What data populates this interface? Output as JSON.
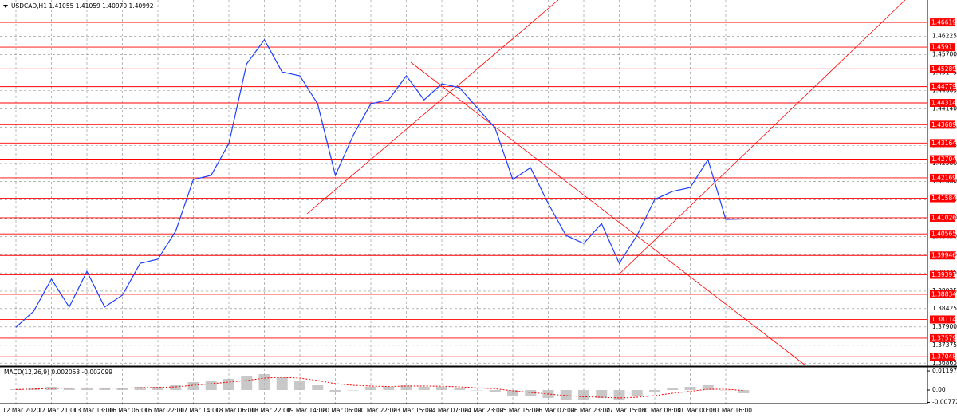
{
  "chart_data": [
    {
      "type": "line",
      "title": "USDCAD,H1  1.41055 1.41059 1.40970 1.40992",
      "categories": [
        "12 Mar 2020",
        null,
        "12 Mar 21:00",
        null,
        "13 Mar 13:00",
        null,
        "16 Mar 06:00",
        null,
        "16 Mar 22:00",
        null,
        "17 Mar 14:00",
        null,
        "18 Mar 06:00",
        null,
        "18 Mar 22:00",
        null,
        "19 Mar 14:00",
        null,
        "20 Mar 06:00",
        null,
        "20 Mar 22:00",
        null,
        "23 Mar 15:00",
        null,
        "24 Mar 07:00",
        null,
        "24 Mar 23:00",
        null,
        "25 Mar 15:00",
        null,
        "26 Mar 07:00",
        null,
        "26 Mar 23:00",
        null,
        "27 Mar 15:00",
        null,
        "30 Mar 08:00",
        null,
        "31 Mar 00:00",
        null,
        "31 Mar 16:00",
        null
      ],
      "values": [
        1.3789,
        1.3835,
        1.3927,
        1.3847,
        1.3949,
        1.3847,
        1.3881,
        1.3972,
        1.3984,
        1.4064,
        1.4212,
        1.4224,
        1.4315,
        1.4543,
        1.4612,
        1.452,
        1.4509,
        1.4429,
        1.4224,
        1.4338,
        1.4429,
        1.444,
        1.4509,
        1.444,
        1.4486,
        1.4475,
        1.4417,
        1.436,
        1.4212,
        1.4246,
        1.4143,
        1.4052,
        1.4029,
        1.4086,
        1.3972,
        1.4052,
        1.4155,
        1.4178,
        1.4189,
        1.4269,
        1.4098,
        1.4099
      ],
      "color": "#1f3fff",
      "ylim": [
        1.368,
        1.4726
      ],
      "yticks": [
        1.46225,
        {
          "value": 1.457,
          "label": "1.45700"
        },
        1.45175,
        1.44665,
        {
          "value": 1.4414,
          "label": "1.44140"
        },
        1.43615,
        1.43095,
        {
          "value": 1.4258,
          "label": "1.42580"
        },
        {
          "value": 1.4206,
          "label": "1.42060"
        },
        1.41535,
        {
          "value": 1.4101,
          "label": "1.41010"
        },
        {
          "value": 1.4049,
          "label": "1.40490"
        },
        1.39965,
        1.39445,
        1.38925,
        1.38425,
        {
          "value": 1.379,
          "label": "1.37900"
        },
        1.37375,
        1.36865
      ],
      "levels": [
        1.46619,
        1.4591,
        1.45289,
        1.44779,
        1.44314,
        1.43689,
        1.43164,
        1.42704,
        1.42169,
        1.41584,
        1.41026,
        1.40565,
        1.39946,
        1.39391,
        1.38834,
        1.38114,
        1.37579,
        1.37048
      ],
      "level_color": "#ff0000",
      "grid": true
    },
    {
      "type": "bar",
      "title": "MACD(12,26,9) 0.002053 -0.002099",
      "values": [
        0.0005,
        0.001,
        0.002,
        0.001,
        0.0015,
        0.001,
        0.001,
        0.002,
        0.002,
        0.003,
        0.005,
        0.006,
        0.007,
        0.009,
        0.01,
        0.008,
        0.006,
        0.003,
        -0.001,
        0,
        0.002,
        0.002,
        0.003,
        0.002,
        0.002,
        0.001,
        0,
        -0.001,
        -0.004,
        -0.004,
        -0.005,
        -0.006,
        -0.006,
        -0.005,
        -0.006,
        -0.004,
        -0.001,
        0.001,
        0.002,
        0.003,
        0,
        -0.002
      ],
      "color": "#b0b0b0",
      "signal": [
        0.0003,
        0.0006,
        0.001,
        0.0012,
        0.0013,
        0.0012,
        0.0012,
        0.0014,
        0.0016,
        0.002,
        0.003,
        0.004,
        0.005,
        0.006,
        0.0075,
        0.008,
        0.0075,
        0.006,
        0.004,
        0.003,
        0.0025,
        0.0022,
        0.0025,
        0.0025,
        0.0024,
        0.002,
        0.0014,
        0.0008,
        -0.0005,
        -0.0015,
        -0.0025,
        -0.0035,
        -0.0042,
        -0.0045,
        -0.005,
        -0.0045,
        -0.0035,
        -0.002,
        -0.0008,
        0.0005,
        0.0005,
        -0.0003
      ],
      "signal_color": "#ff0000",
      "ylim": [
        -0.0085,
        0.0135
      ],
      "yticks": [
        0.011972,
        {
          "value": 0,
          "label": "0.00"
        },
        -0.007723
      ]
    }
  ]
}
